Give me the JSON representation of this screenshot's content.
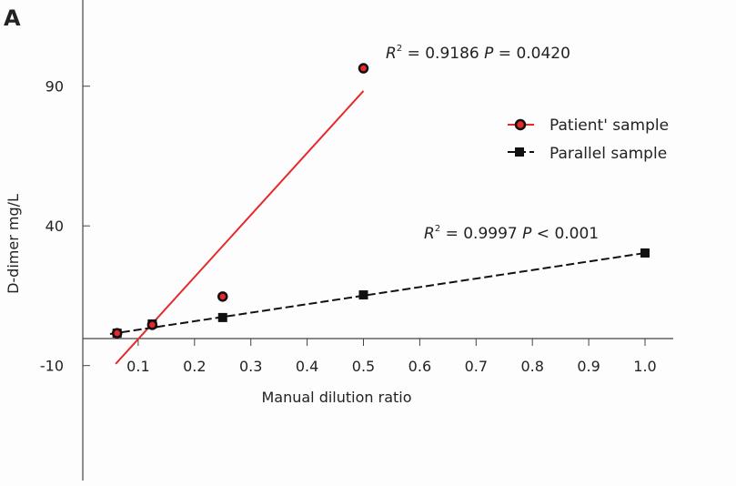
{
  "panel_label": "A",
  "chart_data": {
    "type": "scatter",
    "xlabel": "Manual dilution ratio",
    "ylabel": "D-dimer mg/L",
    "xlim": [
      0,
      1.05
    ],
    "ylim": [
      -50,
      120
    ],
    "x_ticks": [
      "0.1",
      "0.2",
      "0.3",
      "0.4",
      "0.5",
      "0.6",
      "0.7",
      "0.8",
      "0.9",
      "1.0"
    ],
    "y_ticks": [
      "90",
      "40",
      "-10"
    ],
    "x_tick_values": [
      0.1,
      0.2,
      0.3,
      0.4,
      0.5,
      0.6,
      0.7,
      0.8,
      0.9,
      1.0
    ],
    "y_tick_values": [
      90,
      40,
      -10
    ],
    "grid": false,
    "legend_placement": "right",
    "series": [
      {
        "name": "Patient' sample",
        "color": "#e8282b",
        "marker": "circle",
        "x": [
          0.0625,
          0.125,
          0.25,
          0.5
        ],
        "y": [
          1.6,
          4.6,
          14.7,
          96.4
        ],
        "fit": {
          "x": [
            0.06,
            0.5
          ],
          "y": [
            -9.4,
            88.3
          ],
          "style": "solid"
        },
        "annotation": {
          "r2_label": "R",
          "r2_rest": " = 0.9186 ",
          "p_label": "P",
          "p_rest": " = 0.0420"
        }
      },
      {
        "name": "Parallel sample",
        "color": "#111111",
        "marker": "square",
        "x": [
          0.0625,
          0.125,
          0.25,
          0.5,
          1.0
        ],
        "y": [
          1.6,
          4.9,
          7.2,
          15.3,
          30.3
        ],
        "fit": {
          "x": [
            0.05,
            1.0
          ],
          "y": [
            1.3,
            30.3
          ],
          "style": "dashed"
        },
        "annotation": {
          "r2_label": "R",
          "r2_rest": " = 0.9997 ",
          "p_label": "P",
          "p_rest": " < 0.001"
        }
      }
    ]
  }
}
